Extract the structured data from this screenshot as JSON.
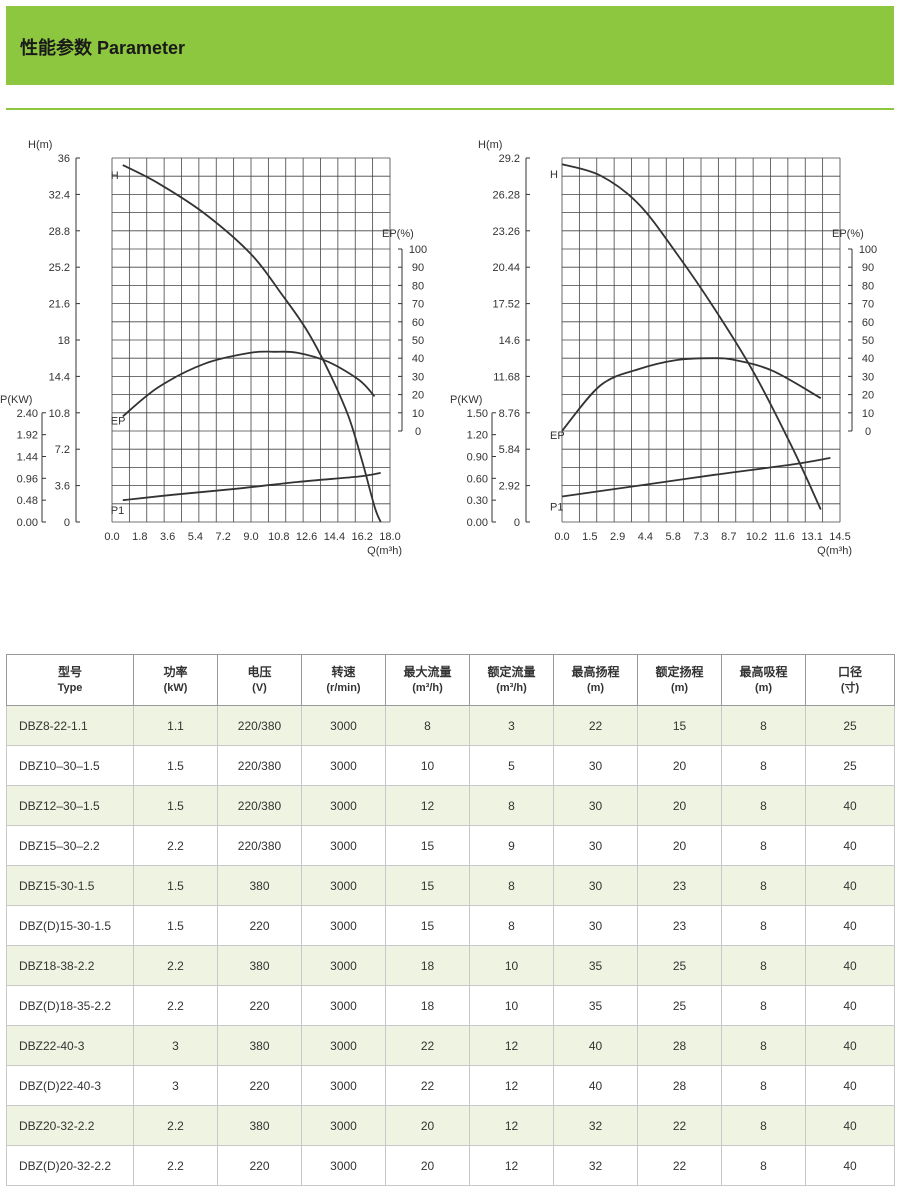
{
  "header": {
    "title": "性能参数 Parameter"
  },
  "colors": {
    "banner": "#8dc63f",
    "row_alt": "#eef4e1",
    "curve": "#333333"
  },
  "chart_data": [
    {
      "type": "line",
      "x": {
        "label": "Q(m³h)",
        "ticks": [
          "0.0",
          "1.8",
          "3.6",
          "5.4",
          "7.2",
          "9.0",
          "10.8",
          "12.6",
          "14.4",
          "16.2",
          "18.0"
        ],
        "lim": [
          0,
          18
        ]
      },
      "y_head": {
        "label": "H(m)",
        "ticks": [
          "0",
          "3.6",
          "7.2",
          "10.8",
          "14.4",
          "18",
          "21.6",
          "25.2",
          "28.8",
          "32.4",
          "36"
        ],
        "lim": [
          0,
          36
        ]
      },
      "y_eff": {
        "label": "EP(%)",
        "ticks": [
          "0",
          "10",
          "20",
          "30",
          "40",
          "50",
          "60",
          "70",
          "80",
          "90",
          "100"
        ],
        "lim": [
          0,
          100
        ]
      },
      "y_power": {
        "label": "P(KW)",
        "ticks": [
          "0.00",
          "0.48",
          "0.96",
          "1.44",
          "1.92",
          "2.40"
        ],
        "lim": [
          0,
          2.4
        ]
      },
      "series": [
        {
          "name": "H",
          "axis": "head",
          "x": [
            0.7,
            3,
            6,
            9,
            11,
            12.6,
            14,
            15.3,
            16.2,
            17.0,
            17.4
          ],
          "y": [
            35.3,
            33.5,
            30.5,
            26.5,
            22.5,
            19,
            15,
            10.5,
            6,
            1.5,
            0
          ]
        },
        {
          "name": "EP",
          "axis": "eff",
          "x": [
            0.7,
            3,
            6,
            9,
            10.5,
            12,
            14,
            16,
            17.0
          ],
          "y": [
            8,
            24,
            37,
            43,
            43.5,
            43,
            38,
            28,
            19
          ]
        },
        {
          "name": "P1",
          "axis": "power",
          "x": [
            0.7,
            4,
            8,
            12,
            16,
            17.4
          ],
          "y": [
            0.48,
            0.6,
            0.73,
            0.88,
            1.0,
            1.08
          ]
        }
      ]
    },
    {
      "type": "line",
      "x": {
        "label": "Q(m³h)",
        "ticks": [
          "0.0",
          "1.5",
          "2.9",
          "4.4",
          "5.8",
          "7.3",
          "8.7",
          "10.2",
          "11.6",
          "13.1",
          "14.5"
        ],
        "lim": [
          0,
          14.5
        ]
      },
      "y_head": {
        "label": "H(m)",
        "ticks": [
          "0",
          "2.92",
          "5.84",
          "8.76",
          "11.68",
          "14.6",
          "17.52",
          "20.44",
          "23.26",
          "26.28",
          "29.2"
        ],
        "lim": [
          0,
          29.2
        ]
      },
      "y_eff": {
        "label": "EP(%)",
        "ticks": [
          "0",
          "10",
          "20",
          "30",
          "40",
          "50",
          "60",
          "70",
          "80",
          "90",
          "100"
        ],
        "lim": [
          0,
          100
        ]
      },
      "y_power": {
        "label": "P(KW)",
        "ticks": [
          "0.00",
          "0.30",
          "0.60",
          "0.90",
          "1.20",
          "1.50"
        ],
        "lim": [
          0,
          1.5
        ]
      },
      "series": [
        {
          "name": "H",
          "axis": "head",
          "x": [
            0,
            2,
            4,
            6,
            8,
            10,
            12,
            13.5
          ],
          "y": [
            28.7,
            27.8,
            25.5,
            21.5,
            17,
            12,
            6,
            1
          ]
        },
        {
          "name": "EP",
          "axis": "eff",
          "x": [
            0,
            2,
            4,
            6,
            7.8,
            9,
            11,
            13.5
          ],
          "y": [
            0,
            25,
            34,
            39,
            40,
            39,
            33,
            18
          ]
        },
        {
          "name": "P1",
          "axis": "power",
          "x": [
            0,
            4,
            8,
            12,
            14
          ],
          "y": [
            0.35,
            0.5,
            0.65,
            0.79,
            0.88
          ]
        }
      ]
    }
  ],
  "table": {
    "headers": [
      {
        "cn": "型号",
        "sub": "Type"
      },
      {
        "cn": "功率",
        "sub": "(kW)"
      },
      {
        "cn": "电压",
        "sub": "(V)"
      },
      {
        "cn": "转速",
        "sub": "(r/min)"
      },
      {
        "cn": "最大流量",
        "sub": "(m³/h)"
      },
      {
        "cn": "额定流量",
        "sub": "(m³/h)"
      },
      {
        "cn": "最高扬程",
        "sub": "(m)"
      },
      {
        "cn": "额定扬程",
        "sub": "(m)"
      },
      {
        "cn": "最高吸程",
        "sub": "(m)"
      },
      {
        "cn": "口径",
        "sub": "(寸)"
      }
    ],
    "rows": [
      [
        "DBZ8-22-1.1",
        "1.1",
        "220/380",
        "3000",
        "8",
        "3",
        "22",
        "15",
        "8",
        "25"
      ],
      [
        "DBZ10–30–1.5",
        "1.5",
        "220/380",
        "3000",
        "10",
        "5",
        "30",
        "20",
        "8",
        "25"
      ],
      [
        "DBZ12–30–1.5",
        "1.5",
        "220/380",
        "3000",
        "12",
        "8",
        "30",
        "20",
        "8",
        "40"
      ],
      [
        "DBZ15–30–2.2",
        "2.2",
        "220/380",
        "3000",
        "15",
        "9",
        "30",
        "20",
        "8",
        "40"
      ],
      [
        "DBZ15-30-1.5",
        "1.5",
        "380",
        "3000",
        "15",
        "8",
        "30",
        "23",
        "8",
        "40"
      ],
      [
        "DBZ(D)15-30-1.5",
        "1.5",
        "220",
        "3000",
        "15",
        "8",
        "30",
        "23",
        "8",
        "40"
      ],
      [
        "DBZ18-38-2.2",
        "2.2",
        "380",
        "3000",
        "18",
        "10",
        "35",
        "25",
        "8",
        "40"
      ],
      [
        "DBZ(D)18-35-2.2",
        "2.2",
        "220",
        "3000",
        "18",
        "10",
        "35",
        "25",
        "8",
        "40"
      ],
      [
        "DBZ22-40-3",
        "3",
        "380",
        "3000",
        "22",
        "12",
        "40",
        "28",
        "8",
        "40"
      ],
      [
        "DBZ(D)22-40-3",
        "3",
        "220",
        "3000",
        "22",
        "12",
        "40",
        "28",
        "8",
        "40"
      ],
      [
        "DBZ20-32-2.2",
        "2.2",
        "380",
        "3000",
        "20",
        "12",
        "32",
        "22",
        "8",
        "40"
      ],
      [
        "DBZ(D)20-32-2.2",
        "2.2",
        "220",
        "3000",
        "20",
        "12",
        "32",
        "22",
        "8",
        "40"
      ]
    ]
  }
}
